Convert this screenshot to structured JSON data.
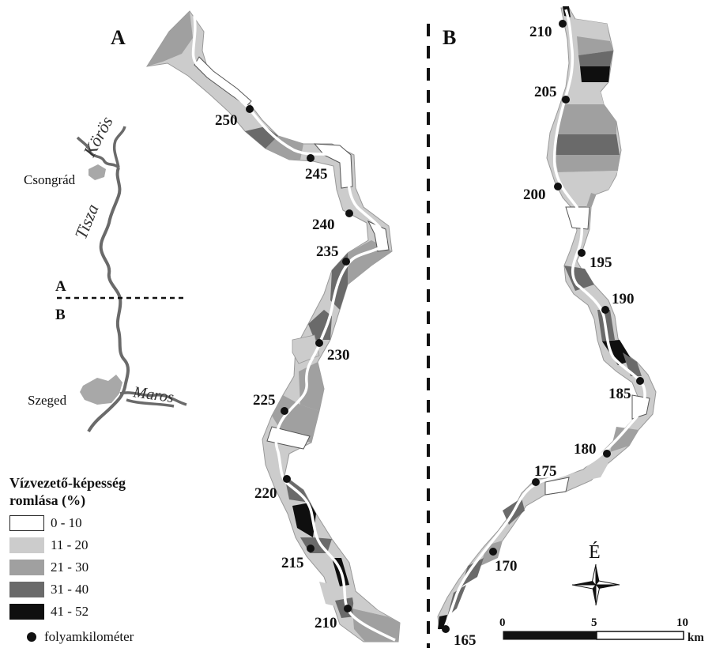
{
  "panels": {
    "a": "A",
    "b": "B"
  },
  "inset": {
    "rivers": {
      "koros": "Körös",
      "tisza": "Tisza",
      "maros": "Maros"
    },
    "towns": {
      "csongrad": "Csongrád",
      "szeged": "Szeged"
    },
    "divider_labels": {
      "a": "A",
      "b": "B"
    }
  },
  "km_markers_a": [
    "250",
    "245",
    "240",
    "235",
    "230",
    "225",
    "220",
    "215",
    "210"
  ],
  "km_markers_b": [
    "210",
    "205",
    "200",
    "195",
    "190",
    "185",
    "180",
    "175",
    "170",
    "165"
  ],
  "legend": {
    "title_line1": "Vízvezető-képesség",
    "title_line2": "romlása (%)",
    "classes": [
      {
        "label": "0 - 10",
        "color": "#ffffff"
      },
      {
        "label": "11 - 20",
        "color": "#cccccc"
      },
      {
        "label": "21 - 30",
        "color": "#a0a0a0"
      },
      {
        "label": "31 - 40",
        "color": "#6a6a6a"
      },
      {
        "label": "41 - 52",
        "color": "#0f0f0f"
      }
    ],
    "marker_label": "folyamkilométer"
  },
  "north_arrow": {
    "label": "É"
  },
  "scale_bar": {
    "ticks": [
      "0",
      "5",
      "10"
    ],
    "unit": "km"
  }
}
